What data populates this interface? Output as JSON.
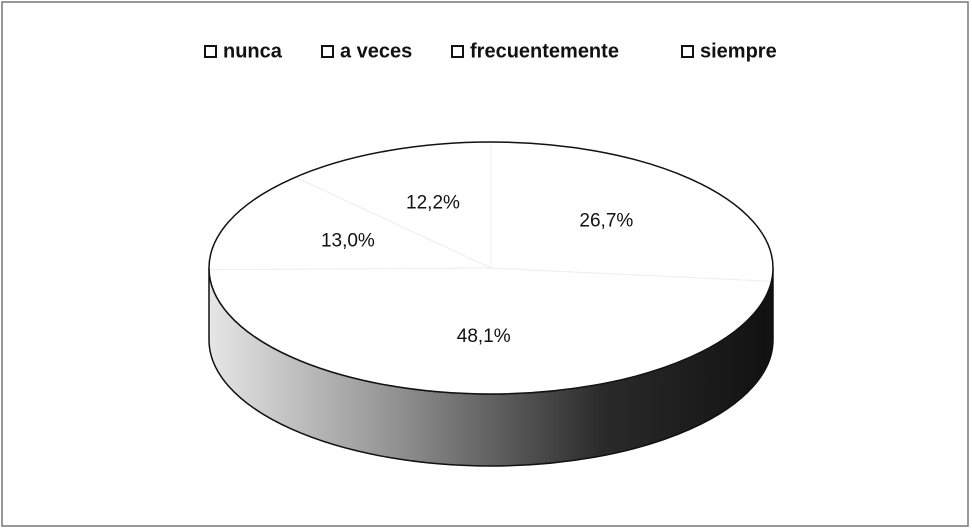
{
  "chart_data": {
    "type": "pie3d",
    "categories": [
      "nunca",
      "a veces",
      "frecuentemente",
      "siempre"
    ],
    "values": [
      26.7,
      48.1,
      13.0,
      12.2
    ],
    "value_labels": [
      "26,7%",
      "48,1%",
      "13,0%",
      "12,2%"
    ],
    "color": "#ffffff",
    "legend": "top"
  }
}
